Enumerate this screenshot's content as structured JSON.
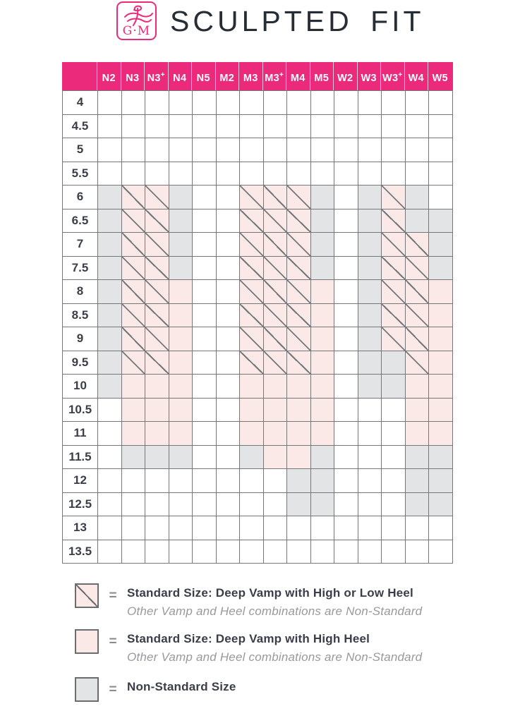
{
  "brand": {
    "logo_text": "G·M",
    "title": "SCULPTED FIT"
  },
  "colors": {
    "header_bg": "#EB2A7C",
    "grid_line": "#76777A",
    "cell_pink": "#FAE9E7",
    "cell_gray": "#E2E4E6",
    "label_text": "#3A3E48",
    "subtext": "#97999D",
    "title_text": "#272D35",
    "brand_pink": "#EB2A7C"
  },
  "chart_data": {
    "type": "table",
    "title": "SCULPTED FIT",
    "columns": [
      "N2",
      "N3",
      "N3+",
      "N4",
      "N5",
      "M2",
      "M3",
      "M3+",
      "M4",
      "M5",
      "W2",
      "W3",
      "W3+",
      "W4",
      "W5"
    ],
    "cell_codes": {
      "0": "empty",
      "H": "standard-size-deep-vamp-high-or-low-heel",
      "P": "standard-size-deep-vamp-high-heel",
      "G": "non-standard-size"
    },
    "rows": [
      {
        "label": "4",
        "cells": "000000000000000"
      },
      {
        "label": "4.5",
        "cells": "000000000000000"
      },
      {
        "label": "5",
        "cells": "000000000000000"
      },
      {
        "label": "5.5",
        "cells": "000000000000000"
      },
      {
        "label": "6",
        "cells": "GHHG00HHHG0GHG0"
      },
      {
        "label": "6.5",
        "cells": "GHHG00HHHG0GHGG"
      },
      {
        "label": "7",
        "cells": "GHHG00HHHG0GHHG"
      },
      {
        "label": "7.5",
        "cells": "GHHG00HHHG0GHHG"
      },
      {
        "label": "8",
        "cells": "GHHP00HHHP0GHHP"
      },
      {
        "label": "8.5",
        "cells": "GHHP00HHHP0GHHP"
      },
      {
        "label": "9",
        "cells": "GHHP00HHHP0GHHP"
      },
      {
        "label": "9.5",
        "cells": "GHHP00HHHP0GGHP"
      },
      {
        "label": "10",
        "cells": "GPPP00PPPP0GGPP"
      },
      {
        "label": "10.5",
        "cells": "0PPP00PPPP000PP"
      },
      {
        "label": "11",
        "cells": "0PPP00PPPP000PP"
      },
      {
        "label": "11.5",
        "cells": "0GGG00GPPG000GG"
      },
      {
        "label": "12",
        "cells": "00000000GG000GG"
      },
      {
        "label": "12.5",
        "cells": "00000000GG000GG"
      },
      {
        "label": "13",
        "cells": "000000000000000"
      },
      {
        "label": "13.5",
        "cells": "000000000000000"
      }
    ]
  },
  "legend": {
    "items": [
      {
        "swatch": "hatched-pink-square",
        "eq": "=",
        "title": "Standard Size:  Deep Vamp with High or Low Heel",
        "subtitle": "Other Vamp and Heel combinations are Non-Standard"
      },
      {
        "swatch": "pink-square",
        "eq": "=",
        "title": "Standard Size:  Deep Vamp with High Heel",
        "subtitle": "Other Vamp and Heel combinations are Non-Standard"
      },
      {
        "swatch": "gray-square",
        "eq": "=",
        "title": "Non-Standard Size",
        "subtitle": ""
      }
    ]
  }
}
